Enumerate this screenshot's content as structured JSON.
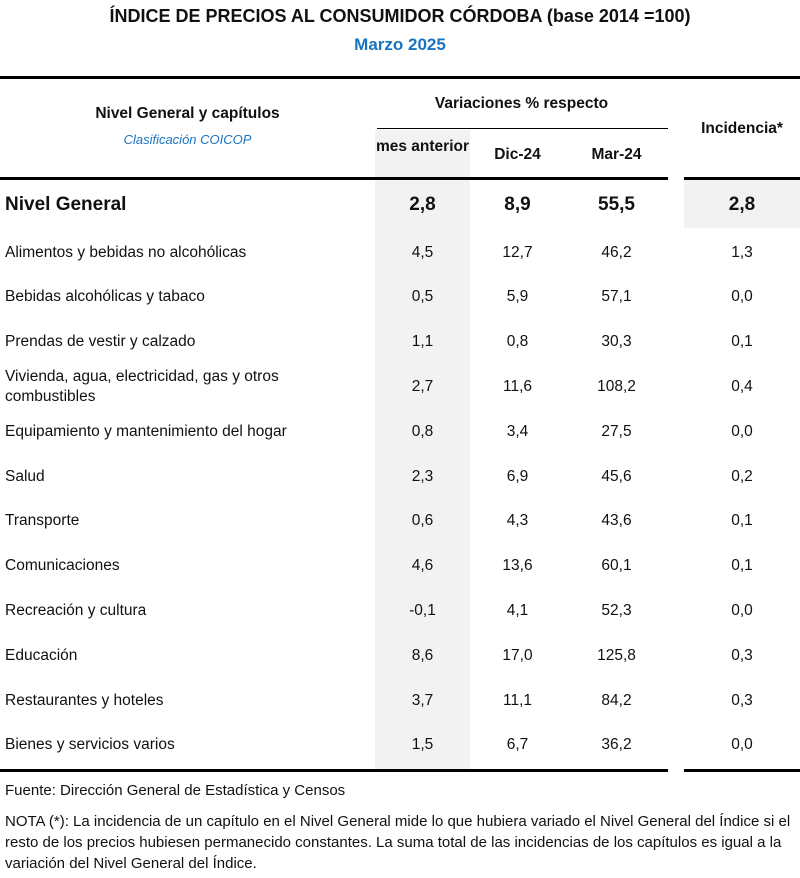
{
  "title": "ÍNDICE DE PRECIOS AL CONSUMIDOR CÓRDOBA (base 2014 =100)",
  "subtitle": "Marzo 2025",
  "header": {
    "label_col": "Nivel General y capítulos",
    "classification": "Clasificación COICOP",
    "variations_group": "Variaciones % respecto",
    "columns": [
      "mes anterior",
      "Dic-24",
      "Mar-24"
    ],
    "incidence": "Incidencia*"
  },
  "general": {
    "label": "Nivel General",
    "values": [
      "2,8",
      "8,9",
      "55,5"
    ],
    "incidence": "2,8"
  },
  "rows": [
    {
      "label": "Alimentos y bebidas no alcohólicas",
      "values": [
        "4,5",
        "12,7",
        "46,2"
      ],
      "incidence": "1,3"
    },
    {
      "label": "Bebidas alcohólicas y tabaco",
      "values": [
        "0,5",
        "5,9",
        "57,1"
      ],
      "incidence": "0,0"
    },
    {
      "label": "Prendas de vestir y calzado",
      "values": [
        "1,1",
        "0,8",
        "30,3"
      ],
      "incidence": "0,1"
    },
    {
      "label": "Vivienda, agua, electricidad, gas y otros combustibles",
      "values": [
        "2,7",
        "11,6",
        "108,2"
      ],
      "incidence": "0,4"
    },
    {
      "label": "Equipamiento y mantenimiento del hogar",
      "values": [
        "0,8",
        "3,4",
        "27,5"
      ],
      "incidence": "0,0"
    },
    {
      "label": "Salud",
      "values": [
        "2,3",
        "6,9",
        "45,6"
      ],
      "incidence": "0,2"
    },
    {
      "label": "Transporte",
      "values": [
        "0,6",
        "4,3",
        "43,6"
      ],
      "incidence": "0,1"
    },
    {
      "label": "Comunicaciones",
      "values": [
        "4,6",
        "13,6",
        "60,1"
      ],
      "incidence": "0,1"
    },
    {
      "label": "Recreación y cultura",
      "values": [
        "-0,1",
        "4,1",
        "52,3"
      ],
      "incidence": "0,0"
    },
    {
      "label": "Educación",
      "values": [
        "8,6",
        "17,0",
        "125,8"
      ],
      "incidence": "0,3"
    },
    {
      "label": "Restaurantes y hoteles",
      "values": [
        "3,7",
        "11,1",
        "84,2"
      ],
      "incidence": "0,3"
    },
    {
      "label": "Bienes y servicios varios",
      "values": [
        "1,5",
        "6,7",
        "36,2"
      ],
      "incidence": "0,0"
    }
  ],
  "source": "Fuente: Dirección General de Estadística y Censos",
  "note": "NOTA (*): La incidencia de un capítulo en el Nivel General mide lo que hubiera variado el Nivel General del Índice si el resto de los precios hubiesen permanecido constantes. La suma total de las incidencias de los capítulos es igual a la variación del Nivel General del Índice."
}
